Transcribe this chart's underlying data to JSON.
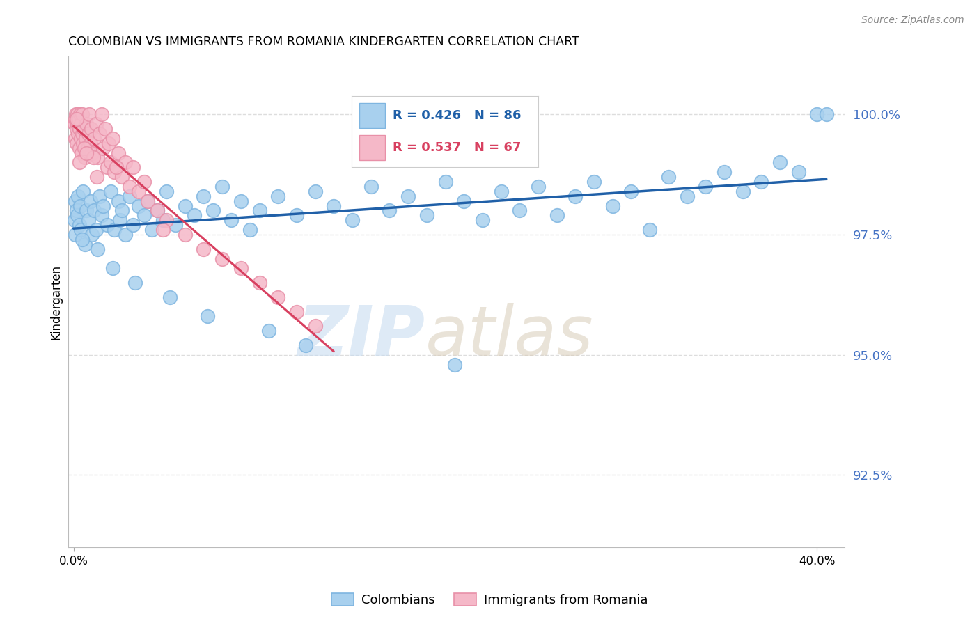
{
  "title": "COLOMBIAN VS IMMIGRANTS FROM ROMANIA KINDERGARTEN CORRELATION CHART",
  "source": "Source: ZipAtlas.com",
  "ylabel": "Kindergarten",
  "ytick_values": [
    100.0,
    97.5,
    95.0,
    92.5
  ],
  "ymin": 91.0,
  "ymax": 101.2,
  "xmin": -0.3,
  "xmax": 41.5,
  "blue_color": "#A8D0EE",
  "blue_edge_color": "#7EB5E0",
  "pink_color": "#F5B8C8",
  "pink_edge_color": "#E890A8",
  "blue_line_color": "#2060A8",
  "pink_line_color": "#D84060",
  "legend_blue_r": "R = 0.426",
  "legend_blue_n": "N = 86",
  "legend_pink_r": "R = 0.537",
  "legend_pink_n": "N = 67",
  "ytick_color": "#4472C4",
  "grid_color": "#DDDDDD",
  "watermark_zip_color": "#C8DCF0",
  "watermark_atlas_color": "#D8CCB8",
  "blue_x": [
    0.05,
    0.08,
    0.1,
    0.15,
    0.2,
    0.25,
    0.3,
    0.35,
    0.4,
    0.5,
    0.6,
    0.7,
    0.8,
    0.9,
    1.0,
    1.1,
    1.2,
    1.4,
    1.5,
    1.6,
    1.8,
    2.0,
    2.2,
    2.4,
    2.5,
    2.6,
    2.8,
    3.0,
    3.2,
    3.5,
    3.8,
    4.0,
    4.2,
    4.5,
    4.8,
    5.0,
    5.5,
    6.0,
    6.5,
    7.0,
    7.5,
    8.0,
    8.5,
    9.0,
    9.5,
    10.0,
    11.0,
    12.0,
    13.0,
    14.0,
    15.0,
    16.0,
    17.0,
    18.0,
    19.0,
    20.0,
    21.0,
    22.0,
    23.0,
    24.0,
    25.0,
    26.0,
    27.0,
    28.0,
    29.0,
    30.0,
    32.0,
    33.0,
    34.0,
    35.0,
    36.0,
    37.0,
    38.0,
    39.0,
    40.0,
    40.5,
    0.45,
    1.3,
    2.1,
    3.3,
    5.2,
    7.2,
    10.5,
    12.5,
    20.5,
    31.0
  ],
  "blue_y": [
    97.8,
    98.2,
    97.5,
    98.0,
    97.9,
    98.3,
    97.7,
    98.1,
    97.6,
    98.4,
    97.3,
    98.0,
    97.8,
    98.2,
    97.5,
    98.0,
    97.6,
    98.3,
    97.9,
    98.1,
    97.7,
    98.4,
    97.6,
    98.2,
    97.8,
    98.0,
    97.5,
    98.3,
    97.7,
    98.1,
    97.9,
    98.2,
    97.6,
    98.0,
    97.8,
    98.4,
    97.7,
    98.1,
    97.9,
    98.3,
    98.0,
    98.5,
    97.8,
    98.2,
    97.6,
    98.0,
    98.3,
    97.9,
    98.4,
    98.1,
    97.8,
    98.5,
    98.0,
    98.3,
    97.9,
    98.6,
    98.2,
    97.8,
    98.4,
    98.0,
    98.5,
    97.9,
    98.3,
    98.6,
    98.1,
    98.4,
    98.7,
    98.3,
    98.5,
    98.8,
    98.4,
    98.6,
    99.0,
    98.8,
    100.0,
    100.0,
    97.4,
    97.2,
    96.8,
    96.5,
    96.2,
    95.8,
    95.5,
    95.2,
    94.8,
    97.6
  ],
  "pink_x": [
    0.05,
    0.08,
    0.1,
    0.12,
    0.15,
    0.18,
    0.2,
    0.22,
    0.25,
    0.28,
    0.3,
    0.32,
    0.35,
    0.38,
    0.4,
    0.42,
    0.45,
    0.48,
    0.5,
    0.55,
    0.6,
    0.65,
    0.7,
    0.75,
    0.8,
    0.85,
    0.9,
    0.95,
    1.0,
    1.1,
    1.2,
    1.3,
    1.4,
    1.5,
    1.6,
    1.7,
    1.8,
    1.9,
    2.0,
    2.1,
    2.2,
    2.4,
    2.6,
    2.8,
    3.0,
    3.2,
    3.5,
    4.0,
    4.5,
    5.0,
    6.0,
    7.0,
    8.0,
    9.0,
    10.0,
    11.0,
    12.0,
    13.0,
    0.33,
    0.58,
    1.05,
    1.25,
    4.8,
    2.3,
    3.8,
    0.16,
    0.68
  ],
  "pink_y": [
    99.8,
    99.5,
    99.9,
    100.0,
    99.7,
    99.4,
    99.8,
    100.0,
    99.6,
    99.9,
    99.3,
    99.7,
    100.0,
    99.5,
    99.8,
    99.2,
    99.6,
    100.0,
    99.4,
    99.7,
    99.1,
    99.5,
    99.8,
    99.3,
    99.6,
    100.0,
    99.4,
    99.7,
    99.2,
    99.5,
    99.8,
    99.1,
    99.6,
    100.0,
    99.3,
    99.7,
    98.9,
    99.4,
    99.0,
    99.5,
    98.8,
    99.2,
    98.7,
    99.0,
    98.5,
    98.9,
    98.4,
    98.2,
    98.0,
    97.8,
    97.5,
    97.2,
    97.0,
    96.8,
    96.5,
    96.2,
    95.9,
    95.6,
    99.0,
    99.3,
    99.1,
    98.7,
    97.6,
    98.9,
    98.6,
    99.9,
    99.2
  ]
}
